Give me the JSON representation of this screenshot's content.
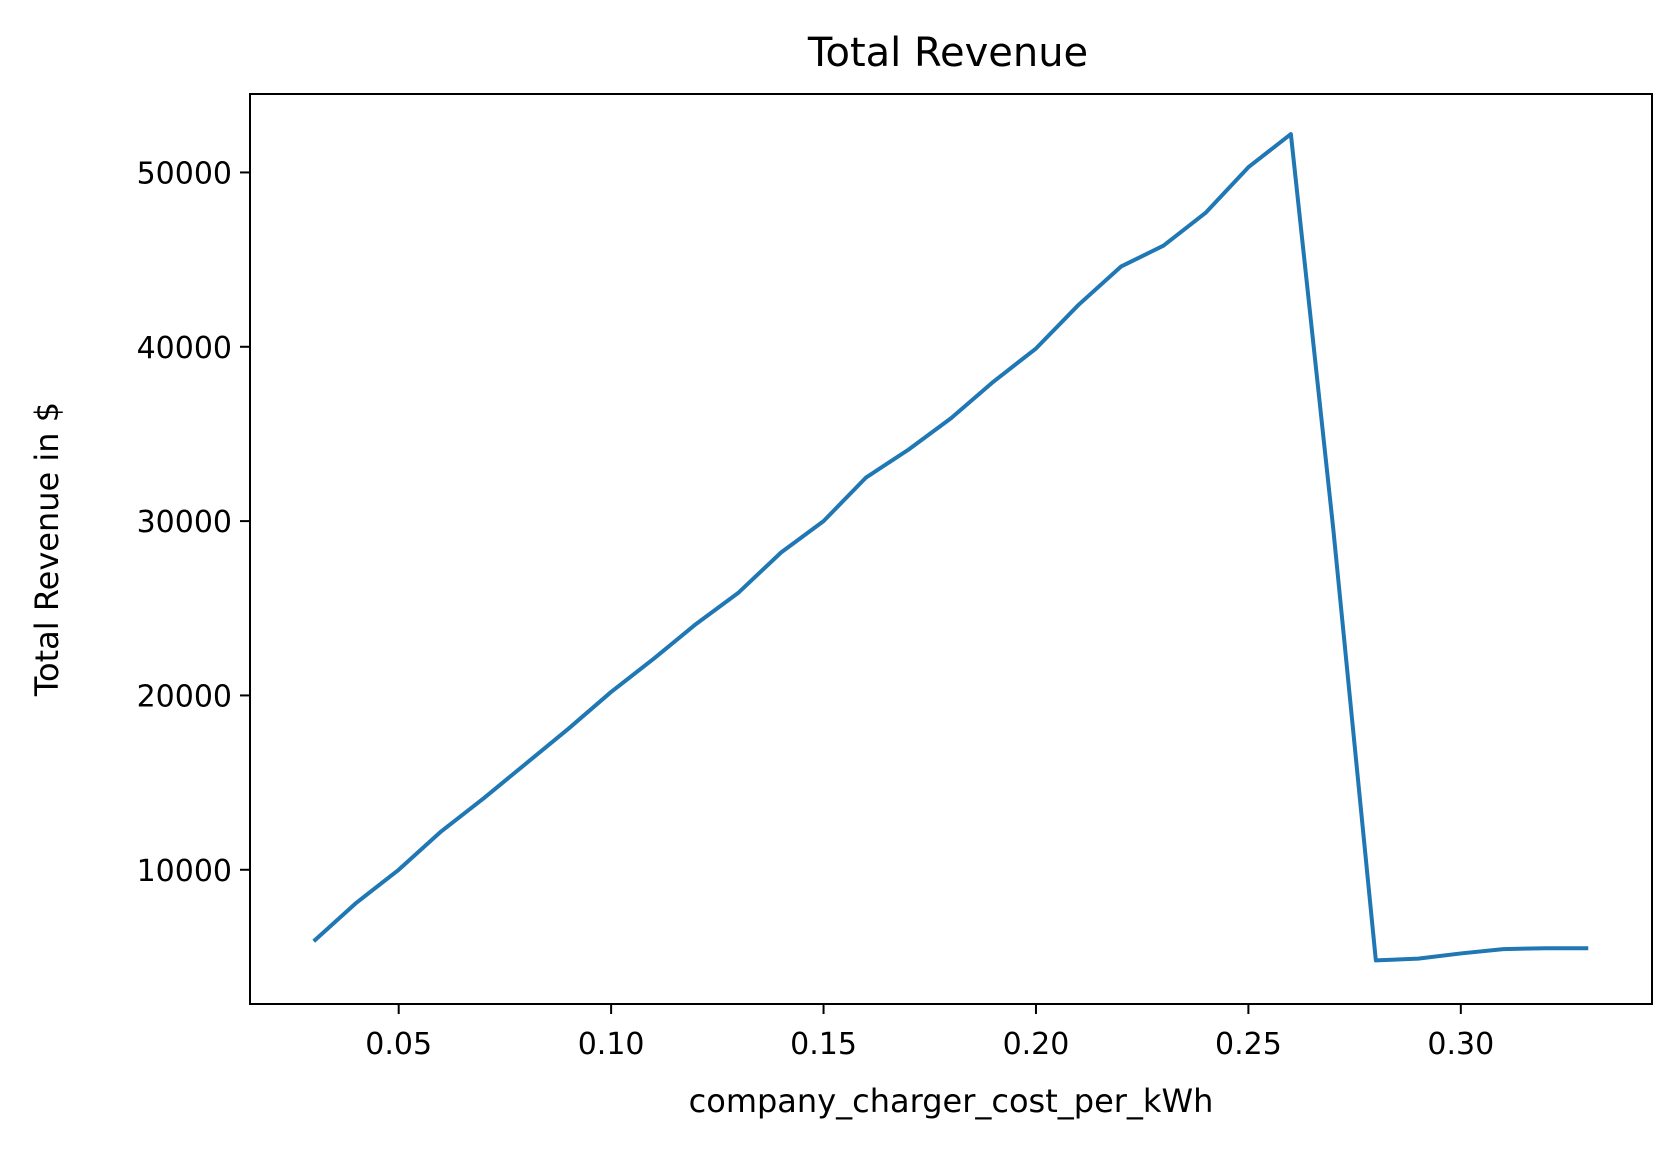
{
  "chart_data": {
    "type": "line",
    "title": "Total Revenue",
    "xlabel": "company_charger_cost_per_kWh",
    "ylabel": "Total Revenue in $",
    "xlim": [
      0.015,
      0.345
    ],
    "ylim": [
      2300,
      54500
    ],
    "x_ticks": [
      0.05,
      0.1,
      0.15,
      0.2,
      0.25,
      0.3
    ],
    "x_tick_labels": [
      "0.05",
      "0.10",
      "0.15",
      "0.20",
      "0.25",
      "0.30"
    ],
    "y_ticks": [
      10000,
      20000,
      30000,
      40000,
      50000
    ],
    "y_tick_labels": [
      "10000",
      "20000",
      "30000",
      "40000",
      "50000"
    ],
    "grid": false,
    "series": [
      {
        "color": "#1f77b4",
        "x": [
          0.03,
          0.04,
          0.05,
          0.06,
          0.07,
          0.08,
          0.09,
          0.1,
          0.11,
          0.12,
          0.13,
          0.14,
          0.15,
          0.16,
          0.17,
          0.18,
          0.19,
          0.2,
          0.21,
          0.22,
          0.23,
          0.24,
          0.25,
          0.26,
          0.27,
          0.28,
          0.29,
          0.3,
          0.31,
          0.32,
          0.33
        ],
        "y": [
          5900,
          8100,
          10000,
          12200,
          14100,
          16100,
          18100,
          20200,
          22100,
          24100,
          25900,
          28200,
          30000,
          32500,
          34100,
          35900,
          38000,
          39900,
          42400,
          44600,
          45800,
          47700,
          50300,
          52200,
          29500,
          4800,
          4900,
          5200,
          5450,
          5500,
          5500
        ]
      }
    ]
  }
}
